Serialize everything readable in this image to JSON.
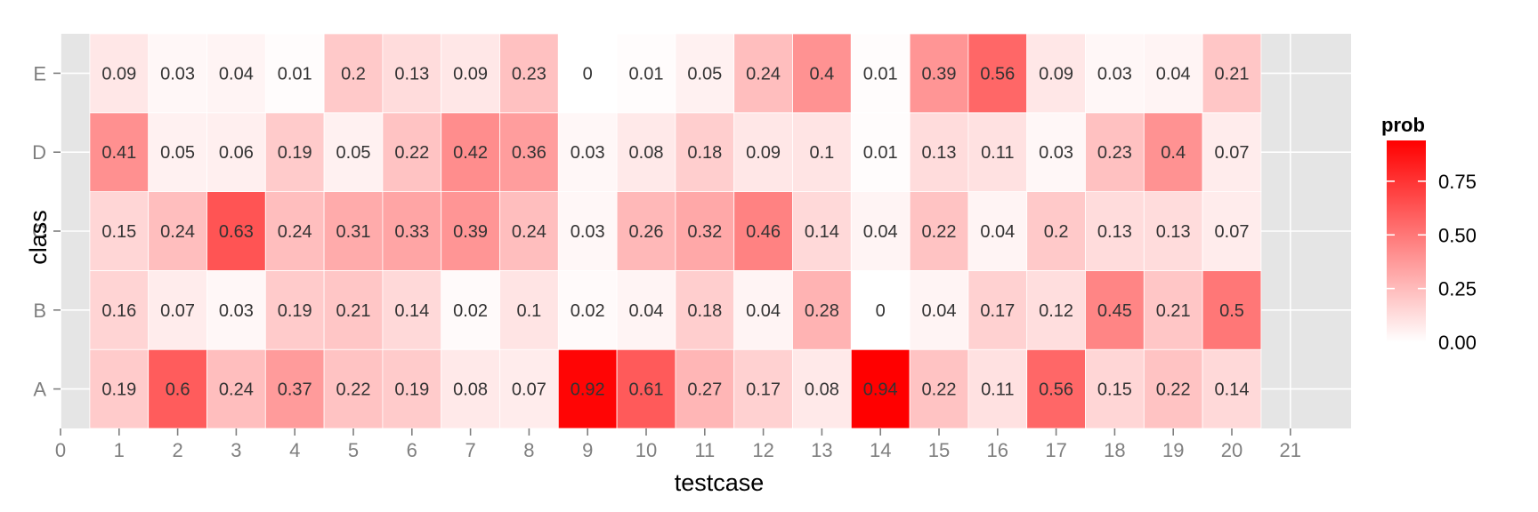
{
  "chart_data": {
    "type": "heatmap",
    "x": [
      1,
      2,
      3,
      4,
      5,
      6,
      7,
      8,
      9,
      10,
      11,
      12,
      13,
      14,
      15,
      16,
      17,
      18,
      19,
      20
    ],
    "y": [
      "A",
      "B",
      "C",
      "D",
      "E"
    ],
    "values": [
      [
        0.19,
        0.6,
        0.24,
        0.37,
        0.22,
        0.19,
        0.08,
        0.07,
        0.92,
        0.61,
        0.27,
        0.17,
        0.08,
        0.94,
        0.22,
        0.11,
        0.56,
        0.15,
        0.22,
        0.14
      ],
      [
        0.16,
        0.07,
        0.03,
        0.19,
        0.21,
        0.14,
        0.02,
        0.1,
        0.02,
        0.04,
        0.18,
        0.04,
        0.28,
        0,
        0.04,
        0.17,
        0.12,
        0.45,
        0.21,
        0.5
      ],
      [
        0.15,
        0.24,
        0.63,
        0.24,
        0.31,
        0.33,
        0.39,
        0.24,
        0.03,
        0.26,
        0.32,
        0.46,
        0.14,
        0.04,
        0.22,
        0.04,
        0.2,
        0.13,
        0.13,
        0.07
      ],
      [
        0.41,
        0.05,
        0.06,
        0.19,
        0.05,
        0.22,
        0.42,
        0.36,
        0.03,
        0.08,
        0.18,
        0.09,
        0.1,
        0.01,
        0.13,
        0.11,
        0.03,
        0.23,
        0.4,
        0.07
      ],
      [
        0.09,
        0.03,
        0.04,
        0.01,
        0.2,
        0.13,
        0.09,
        0.23,
        0,
        0.01,
        0.05,
        0.24,
        0.4,
        0.01,
        0.39,
        0.56,
        0.09,
        0.03,
        0.04,
        0.21
      ]
    ],
    "xlabel": "testcase",
    "ylabel": "class",
    "xticks": [
      0,
      1,
      2,
      3,
      4,
      5,
      6,
      7,
      8,
      9,
      10,
      11,
      12,
      13,
      14,
      15,
      16,
      17,
      18,
      19,
      20,
      21
    ],
    "xlim": [
      0,
      21.5
    ],
    "legend": {
      "title": "prob",
      "ticks": [
        0.0,
        0.25,
        0.5,
        0.75
      ],
      "tick_labels": [
        "0.00",
        "0.25",
        "0.50",
        "0.75"
      ],
      "range": [
        0,
        0.94
      ],
      "position": "right"
    },
    "colors": {
      "low": "#ffffff",
      "high": "#ff0000",
      "panel": "#e5e5e5",
      "tile_border": "#ffffff"
    },
    "grid": true
  }
}
